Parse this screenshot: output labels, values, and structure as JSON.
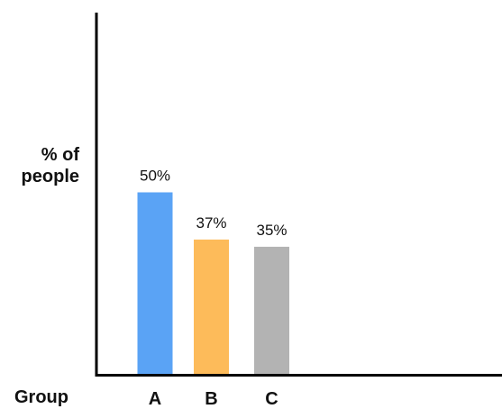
{
  "chart_data": {
    "type": "bar",
    "categories": [
      "A",
      "B",
      "C"
    ],
    "values": [
      50,
      37,
      35
    ],
    "data_labels": [
      "50%",
      "37%",
      "35%"
    ],
    "colors": [
      "#5aa3f5",
      "#fdbb5a",
      "#b3b3b3"
    ],
    "xlabel": "Group",
    "ylabel_lines": [
      "% of",
      "people"
    ],
    "ylim": [
      0,
      100
    ],
    "grid": false,
    "legend": "none"
  }
}
